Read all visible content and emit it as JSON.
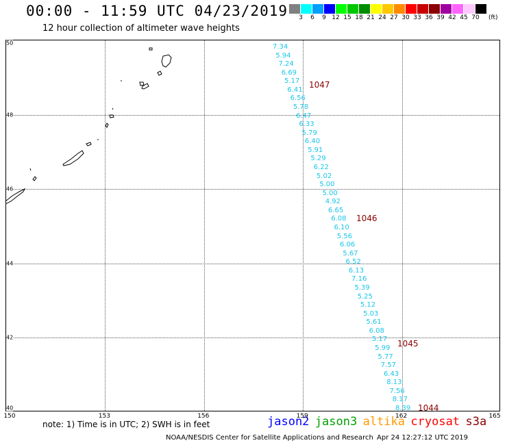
{
  "title": "00:00 - 11:59 UTC 04/23/2019",
  "subtitle": "12 hour collection of altimeter wave heights",
  "scale": {
    "unit_label": "(ft)",
    "bins": [
      {
        "label": "3",
        "color": "#808080"
      },
      {
        "label": "6",
        "color": "#00ffff"
      },
      {
        "label": "9",
        "color": "#00a0ff"
      },
      {
        "label": "12",
        "color": "#0000ff"
      },
      {
        "label": "15",
        "color": "#00ff00"
      },
      {
        "label": "18",
        "color": "#00c800"
      },
      {
        "label": "21",
        "color": "#008c00"
      },
      {
        "label": "24",
        "color": "#ffff00"
      },
      {
        "label": "27",
        "color": "#ffc800"
      },
      {
        "label": "30",
        "color": "#ff8c00"
      },
      {
        "label": "33",
        "color": "#ff0000"
      },
      {
        "label": "36",
        "color": "#c80000"
      },
      {
        "label": "39",
        "color": "#8b0000"
      },
      {
        "label": "42",
        "color": "#a000a0"
      },
      {
        "label": "45",
        "color": "#ff64ff"
      },
      {
        "label": "70",
        "color": "#ffc8ff"
      },
      {
        "label": "",
        "color": "#000000"
      }
    ]
  },
  "axes": {
    "lat_labels": [
      "50",
      "48",
      "46",
      "44",
      "42",
      "40"
    ],
    "lon_labels": [
      "150",
      "153",
      "156",
      "159",
      "162",
      "165"
    ]
  },
  "wave_heights": [
    "7.34",
    "5.94",
    "7.24",
    "6.69",
    "5.17",
    "6.41",
    "6.56",
    "5.78",
    "6.47",
    "6.33",
    "5.79",
    "6.40",
    "5.91",
    "5.29",
    "6.22",
    "5.02",
    "5.00",
    "5.00",
    "4.92",
    "6.65",
    "6.08",
    "6.10",
    "5.56",
    "6.06",
    "5.67",
    "6.52",
    "6.13",
    "7.16",
    "5.39",
    "5.25",
    "5.12",
    "5.03",
    "5.61",
    "6.08",
    "5.17",
    "5.99",
    "5.77",
    "7.57",
    "6.43",
    "8.13",
    "7.56",
    "8.17",
    "8.39"
  ],
  "pass_labels": [
    "1047",
    "1046",
    "1045",
    "1044"
  ],
  "note": "note: 1) Time is in UTC; 2) SWH is in feet",
  "legend": [
    {
      "label": "jason2",
      "color": "#0000ff"
    },
    {
      "label": "jason3",
      "color": "#00a000"
    },
    {
      "label": "altika",
      "color": "#ff9900"
    },
    {
      "label": "cryosat",
      "color": "#ff0000"
    },
    {
      "label": "s3a",
      "color": "#8b0000"
    }
  ],
  "credit": "NOAA/NESDIS Center for Satellite Applications and Research",
  "timestamp": "Apr 24 12:27:12 UTC 2019",
  "map_extent": {
    "lon_min": 150,
    "lon_max": 165,
    "lat_min": 40,
    "lat_max": 50
  }
}
